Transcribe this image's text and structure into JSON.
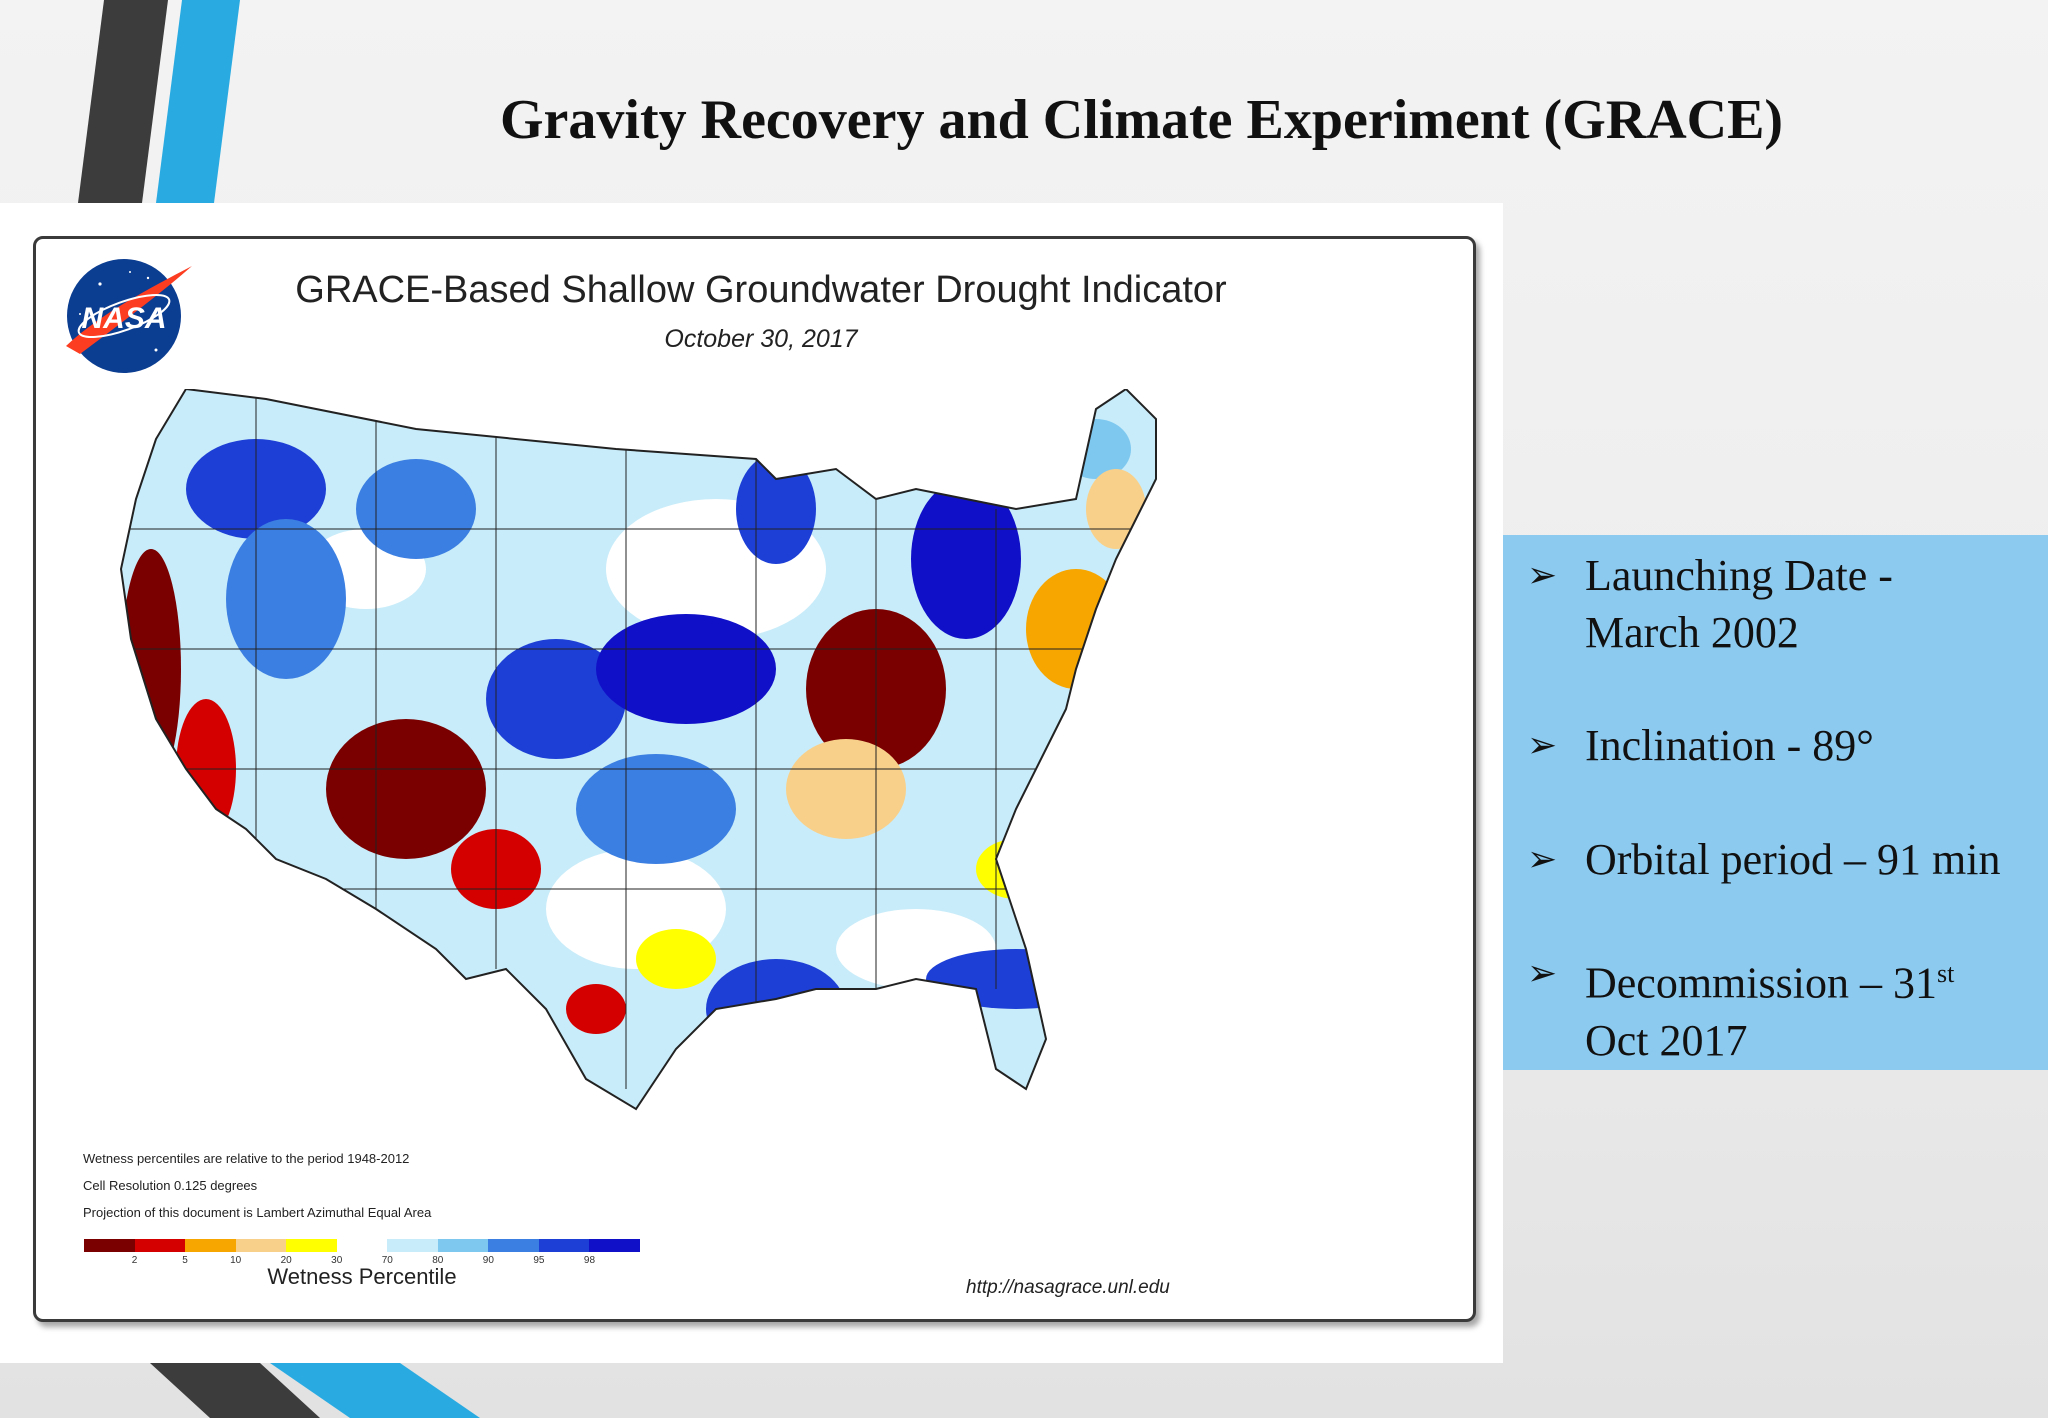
{
  "slide": {
    "title": "Gravity Recovery and Climate Experiment (GRACE)"
  },
  "map": {
    "title": "GRACE-Based Shallow Groundwater Drought Indicator",
    "date": "October 30, 2017",
    "logo_text": "NASA",
    "notes": [
      "Wetness percentiles are relative to the period 1948-2012",
      "Cell Resolution 0.125 degrees",
      "Projection of this document is Lambert Azimuthal Equal Area"
    ],
    "legend": {
      "label": "Wetness Percentile",
      "ticks": [
        "2",
        "5",
        "10",
        "20",
        "30",
        "70",
        "80",
        "90",
        "95",
        "98"
      ],
      "colors": [
        "#7a0000",
        "#d40000",
        "#f7a600",
        "#f9d08a",
        "#ffff00",
        "#ffffff",
        "#c8ecf9",
        "#7ec8f0",
        "#3c7fe2",
        "#1d3fd6",
        "#1010c8"
      ]
    },
    "source_url": "http://nasagrace.unl.edu"
  },
  "info": {
    "items": [
      {
        "line1": "Launching Date -",
        "line2": "March 2002"
      },
      {
        "line1": "Inclination - 89°",
        "line2": ""
      },
      {
        "line1": "Orbital period – 91 min",
        "line2": ""
      },
      {
        "line1": "Decommission – 31",
        "sup": "st",
        "line2": "Oct 2017"
      }
    ]
  },
  "colors": {
    "accent_blue": "#29abe2",
    "accent_dark": "#3c3c3c",
    "info_bg": "#8ccaef"
  }
}
